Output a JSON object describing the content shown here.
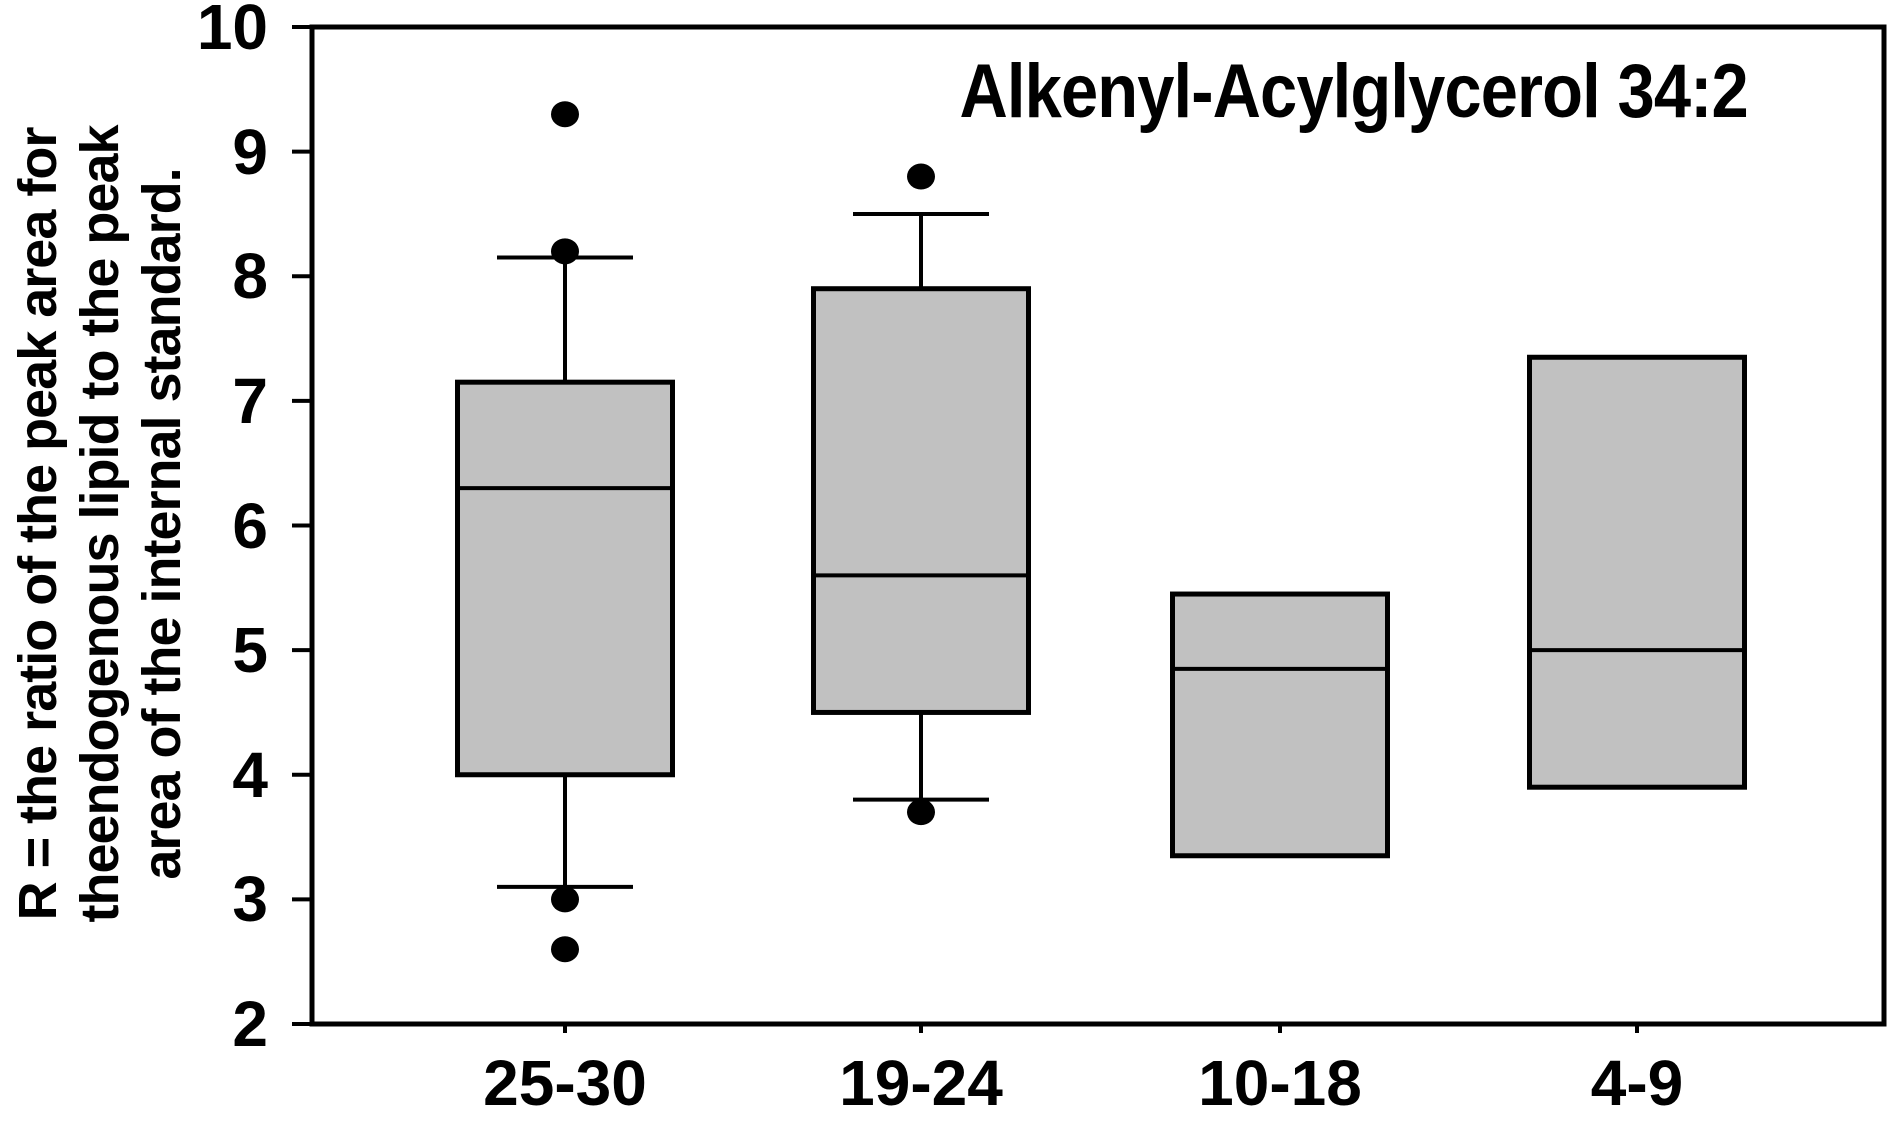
{
  "chart_data": {
    "type": "box",
    "title": "Alkenyl-Acylglycerol 34:2",
    "ylabel_lines": [
      "R = the ratio of the peak area for",
      "theendogenous lipid to the peak",
      "area of the internal standard."
    ],
    "xlabel": "",
    "ylim": [
      2,
      10
    ],
    "yticks": [
      2,
      3,
      4,
      5,
      6,
      7,
      8,
      9,
      10
    ],
    "grid": false,
    "legend": "none",
    "categories": [
      "25-30",
      "19-24",
      "10-18",
      "4-9"
    ],
    "series": [
      {
        "category": "25-30",
        "q1": 4.0,
        "median": 6.3,
        "q3": 7.15,
        "whisker_low": 3.1,
        "whisker_high": 8.15,
        "outliers": [
          9.3,
          8.2,
          3.0,
          2.6
        ]
      },
      {
        "category": "19-24",
        "q1": 4.5,
        "median": 5.6,
        "q3": 7.9,
        "whisker_low": 3.8,
        "whisker_high": 8.5,
        "outliers": [
          8.8,
          3.7
        ]
      },
      {
        "category": "10-18",
        "q1": 3.35,
        "median": 4.85,
        "q3": 5.45,
        "whisker_low": null,
        "whisker_high": null,
        "outliers": []
      },
      {
        "category": "4-9",
        "q1": 3.9,
        "median": 5.0,
        "q3": 7.35,
        "whisker_low": null,
        "whisker_high": null,
        "outliers": []
      }
    ],
    "colors": {
      "box_fill": "#c1c1c1",
      "line": "#000000",
      "background": "#ffffff"
    }
  }
}
